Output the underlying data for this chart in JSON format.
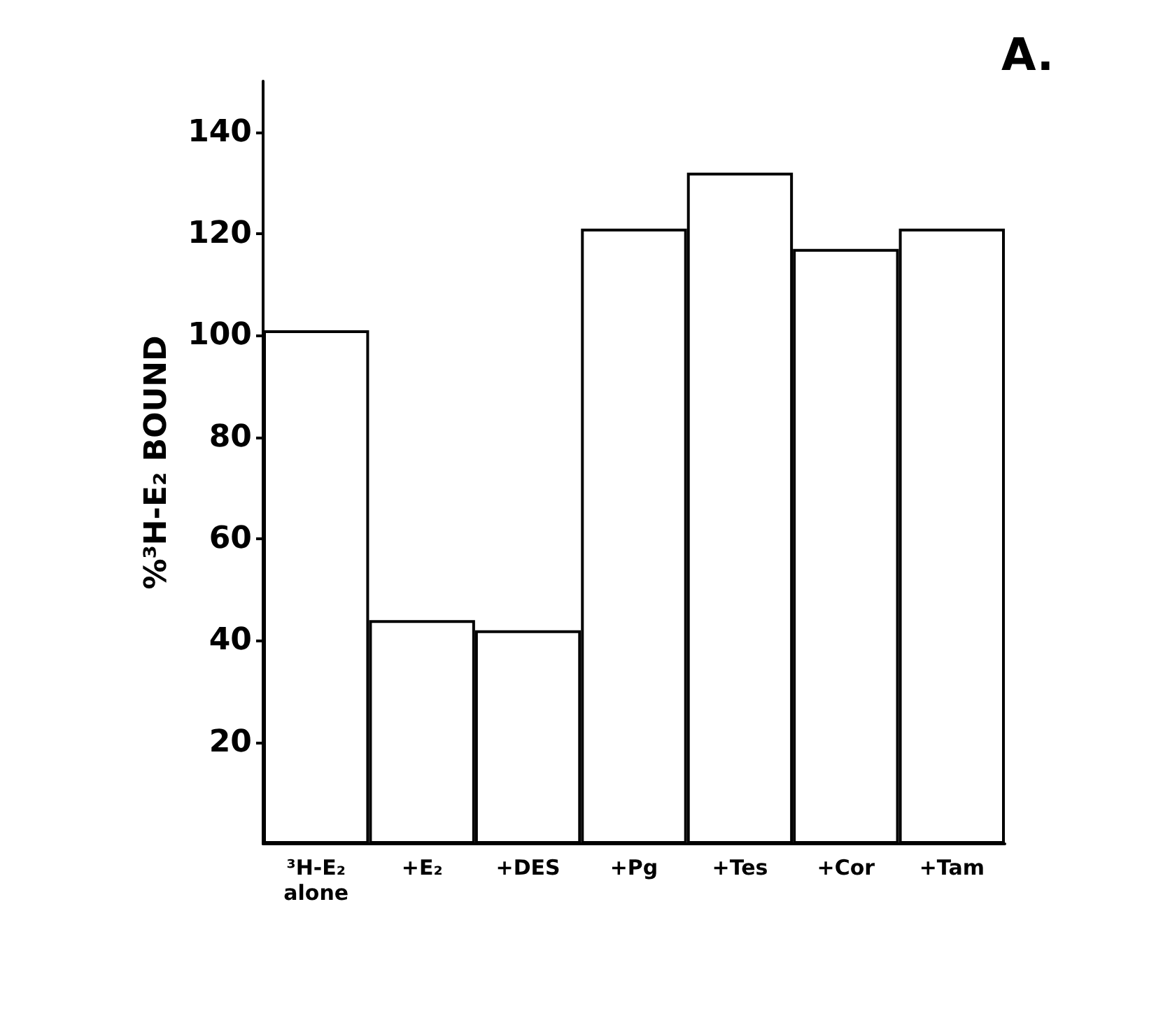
{
  "chart_data": {
    "type": "bar",
    "title": "A.",
    "ylabel": "%³H-E₂ BOUND",
    "categories": [
      "³H-E₂\nalone",
      "+E₂",
      "+DES",
      "+Pg",
      "+Tes",
      "+Cor",
      "+Tam"
    ],
    "values": [
      101,
      44,
      42,
      121,
      132,
      117,
      121
    ],
    "color": "#ffffff",
    "ylim": [
      0,
      150
    ],
    "yticks": [
      20,
      40,
      60,
      80,
      100,
      120,
      140
    ],
    "grid": false
  }
}
